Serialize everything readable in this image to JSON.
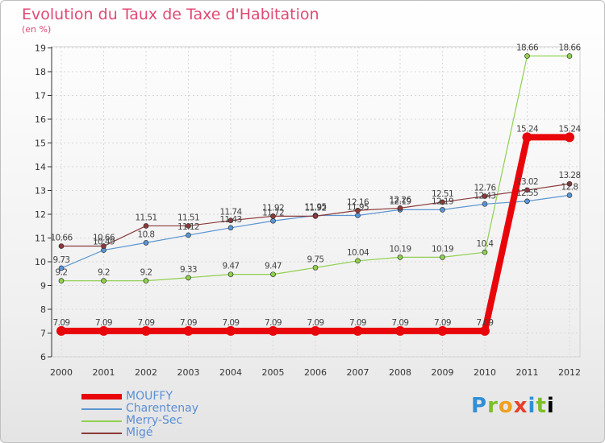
{
  "title": "Evolution du Taux de Taxe d'Habitation",
  "unit": "(en %)",
  "logo": [
    "P",
    "r",
    "o",
    "x",
    "i",
    "t",
    "i"
  ],
  "chart_data": {
    "type": "line",
    "x": [
      "2000",
      "2001",
      "2002",
      "2003",
      "2004",
      "2005",
      "2006",
      "2007",
      "2008",
      "2009",
      "2010",
      "2011",
      "2012"
    ],
    "ylim": [
      6,
      19
    ],
    "yticks": [
      6,
      7,
      8,
      9,
      10,
      11,
      12,
      13,
      14,
      15,
      16,
      17,
      18,
      19
    ],
    "grid": true,
    "legend_position": "bottom-left",
    "series": [
      {
        "name": "MOUFFY",
        "color": "#e8060a",
        "width": 8,
        "marker_r": 6,
        "values": [
          7.09,
          7.09,
          7.09,
          7.09,
          7.09,
          7.09,
          7.09,
          7.09,
          7.09,
          7.09,
          7.09,
          15.24,
          15.24
        ],
        "labels": [
          "7.09",
          "7.09",
          "7.09",
          "7.09",
          "7.09",
          "7.09",
          "7.09",
          "7.09",
          "7.09",
          "7.09",
          "7.09",
          "15.24",
          "15.24"
        ]
      },
      {
        "name": "Charentenay",
        "color": "#5b95d2",
        "width": 1.2,
        "marker_r": 3,
        "values": [
          9.73,
          10.49,
          10.8,
          11.12,
          11.43,
          11.72,
          11.95,
          11.95,
          12.19,
          12.19,
          12.43,
          12.55,
          12.8
        ],
        "labels": [
          "9.73",
          "10.49",
          "10.8",
          "11.12",
          "11.43",
          "11.72",
          "11.95",
          "11.95",
          "12.19",
          "12.19",
          "12.43",
          "12.55",
          "12.8"
        ]
      },
      {
        "name": "Merry-Sec",
        "color": "#90d050",
        "width": 1.2,
        "marker_r": 3,
        "values": [
          9.2,
          9.2,
          9.2,
          9.33,
          9.47,
          9.47,
          9.75,
          10.04,
          10.19,
          10.19,
          10.4,
          18.66,
          18.66
        ],
        "labels": [
          "9.2",
          "9.2",
          "9.2",
          "9.33",
          "9.47",
          "9.47",
          "9.75",
          "10.04",
          "10.19",
          "10.19",
          "10.4",
          "18.66",
          "18.66"
        ]
      },
      {
        "name": "Migé",
        "color": "#8b3a3a",
        "width": 1.2,
        "marker_r": 3,
        "values": [
          10.66,
          10.66,
          11.51,
          11.51,
          11.74,
          11.92,
          11.92,
          12.16,
          12.26,
          12.51,
          12.76,
          13.02,
          13.28
        ],
        "labels": [
          "10.66",
          "10.66",
          "11.51",
          "11.51",
          "11.74",
          "11.92",
          "11.92",
          "12.16",
          "12.26",
          "12.51",
          "12.76",
          "13.02",
          "13.28"
        ]
      }
    ]
  }
}
